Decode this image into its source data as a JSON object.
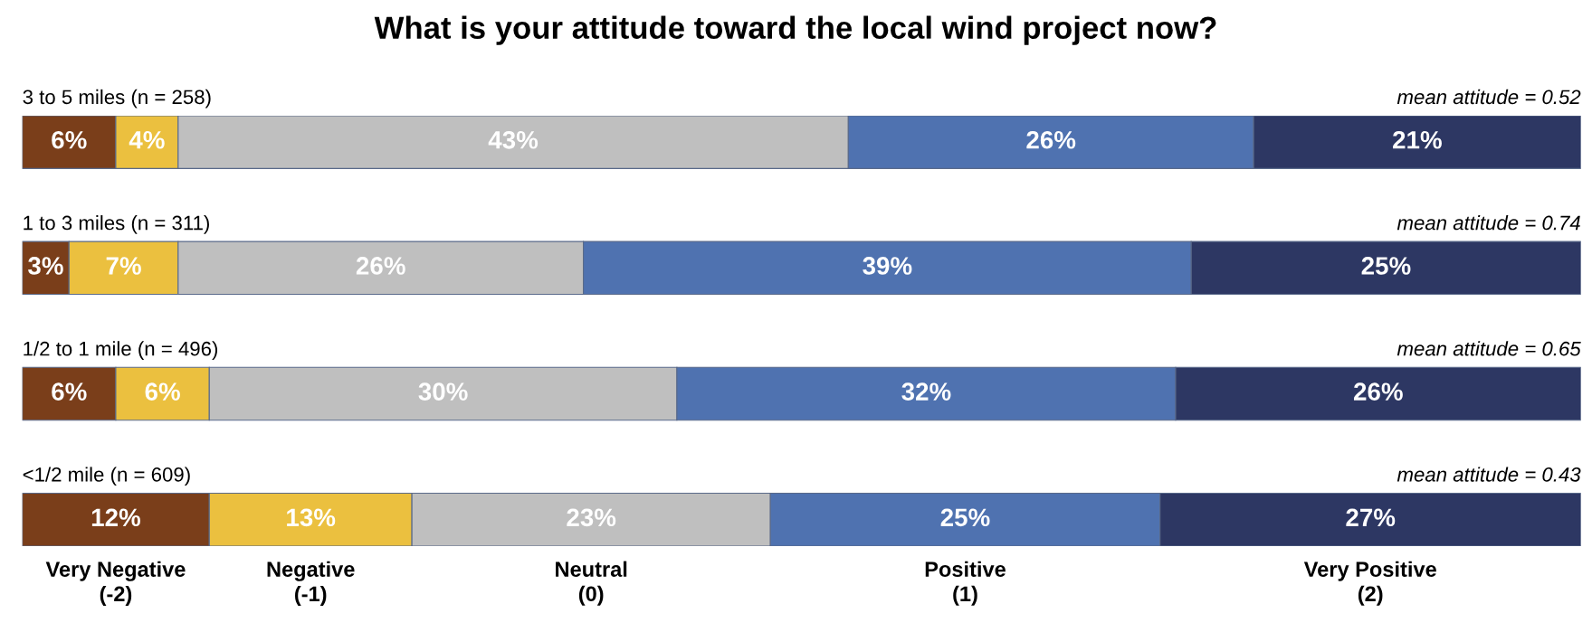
{
  "chart_data": {
    "type": "bar",
    "orientation": "horizontal",
    "stacked": true,
    "title": "What is your attitude toward the local wind project now?",
    "categories": [
      "3 to 5 miles (n = 258)",
      "1 to 3 miles (n = 311)",
      "1/2 to 1 mile (n = 496)",
      "<1/2 mile (n = 609)"
    ],
    "annotations": [
      "mean attitude = 0.52",
      "mean attitude = 0.74",
      "mean attitude = 0.65",
      "mean attitude = 0.43"
    ],
    "xlim": [
      0,
      100
    ],
    "series": [
      {
        "name": "Very Negative\n(-2)",
        "color": "#7a3e1a",
        "values": [
          6,
          3,
          6,
          12
        ],
        "value_labels": [
          "6%",
          "3%",
          "6%",
          "12%"
        ]
      },
      {
        "name": "Negative\n(-1)",
        "color": "#ebc03f",
        "values": [
          4,
          7,
          6,
          13
        ],
        "value_labels": [
          "4%",
          "7%",
          "6%",
          "13%"
        ]
      },
      {
        "name": "Neutral\n(0)",
        "color": "#bfbfbf",
        "values": [
          43,
          26,
          30,
          23
        ],
        "value_labels": [
          "43%",
          "26%",
          "30%",
          "23%"
        ]
      },
      {
        "name": "Positive\n(1)",
        "color": "#4f72b0",
        "values": [
          26,
          39,
          32,
          25
        ],
        "value_labels": [
          "26%",
          "39%",
          "32%",
          "25%"
        ]
      },
      {
        "name": "Very Positive\n(2)",
        "color": "#2d3763",
        "values": [
          21,
          25,
          26,
          27
        ],
        "value_labels": [
          "21%",
          "25%",
          "26%",
          "27%"
        ]
      }
    ]
  }
}
